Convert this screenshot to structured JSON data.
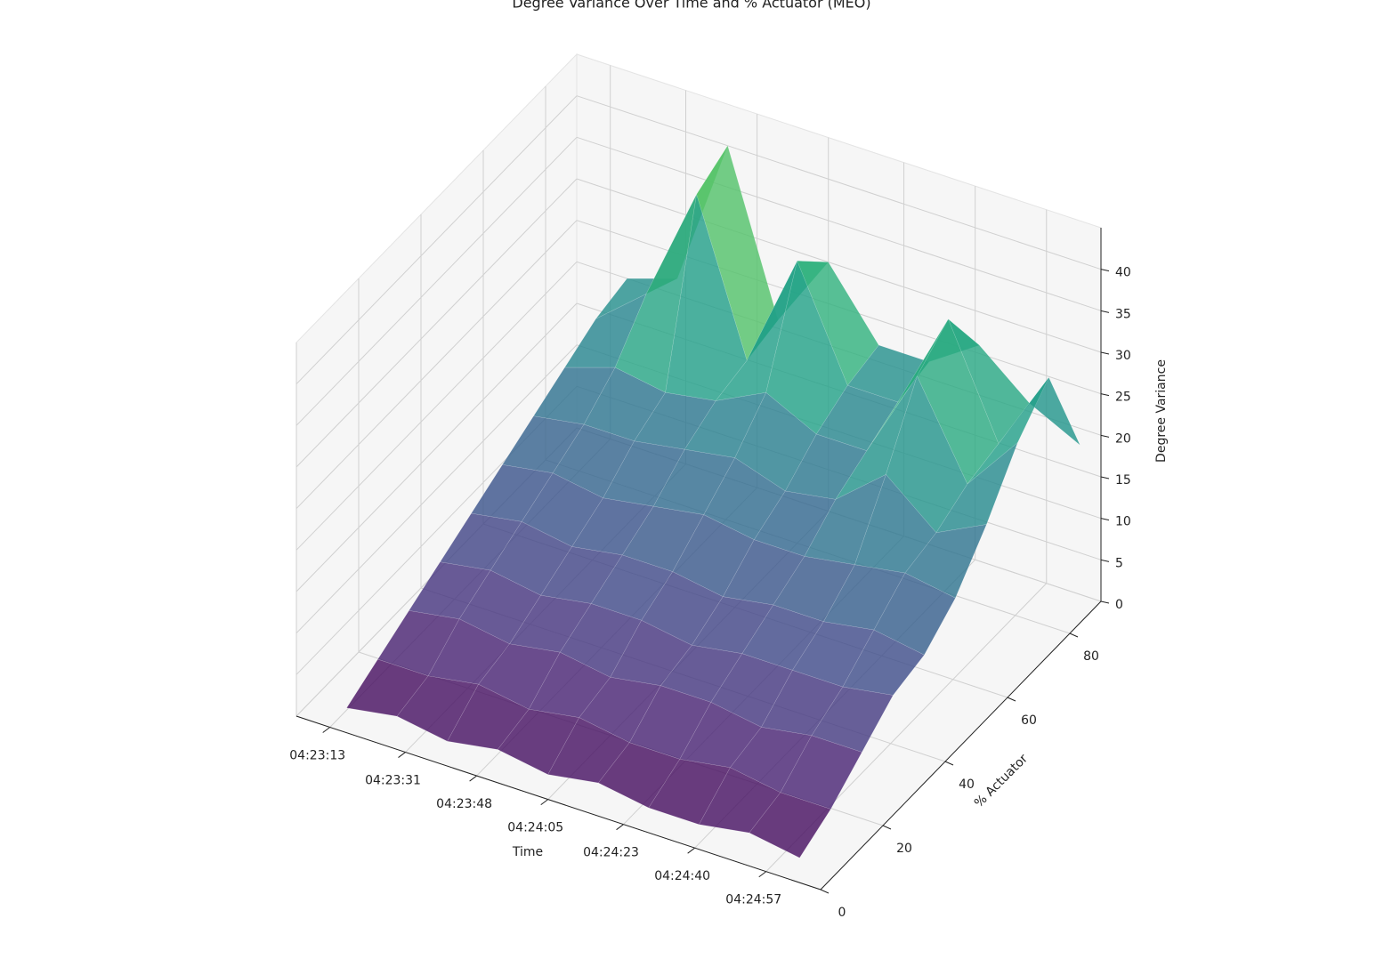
{
  "chart_data": {
    "type": "surface3d",
    "title": "Degree Variance Over Time and % Actuator (MEO)",
    "xlabel": "Time",
    "ylabel": "% Actuator",
    "zlabel": "Degree Variance",
    "x": [
      15797,
      15809,
      15821,
      15833,
      15845,
      15857,
      15869,
      15881,
      15893,
      15905
    ],
    "y": [
      0,
      10,
      20,
      30,
      40,
      50,
      60,
      70,
      80,
      90
    ],
    "z": [
      [
        3,
        4,
        3,
        4,
        3,
        4,
        3,
        3,
        4,
        3
      ],
      [
        5,
        5,
        6,
        5,
        6,
        5,
        5,
        6,
        5,
        5
      ],
      [
        7,
        8,
        7,
        8,
        7,
        8,
        8,
        7,
        8,
        8
      ],
      [
        9,
        10,
        9,
        10,
        10,
        9,
        10,
        10,
        10,
        11
      ],
      [
        11,
        12,
        11,
        12,
        12,
        11,
        12,
        12,
        13,
        12
      ],
      [
        13,
        14,
        13,
        14,
        15,
        14,
        14,
        15,
        16,
        15
      ],
      [
        15,
        16,
        16,
        17,
        18,
        16,
        17,
        22,
        17,
        20
      ],
      [
        17,
        19,
        18,
        19,
        22,
        19,
        19,
        30,
        19,
        26
      ],
      [
        19,
        24,
        38,
        20,
        34,
        21,
        21,
        33,
        20,
        30
      ],
      [
        20,
        22,
        40,
        21,
        30,
        22,
        22,
        26,
        21,
        18
      ]
    ],
    "colormap": "viridis",
    "alpha": 0.8,
    "xlim": [
      15785,
      15910
    ],
    "xticks": [
      {
        "value": 15793,
        "label": "04:23:13"
      },
      {
        "value": 15811,
        "label": "04:23:31"
      },
      {
        "value": 15828,
        "label": "04:23:48"
      },
      {
        "value": 15845,
        "label": "04:24:05"
      },
      {
        "value": 15863,
        "label": "04:24:23"
      },
      {
        "value": 15880,
        "label": "04:24:40"
      },
      {
        "value": 15897,
        "label": "04:24:57"
      }
    ],
    "ylim": [
      0,
      90
    ],
    "yticks": [
      0,
      20,
      40,
      60,
      80
    ],
    "zlim": [
      0,
      45
    ],
    "zticks": [
      0,
      5,
      10,
      15,
      20,
      25,
      30,
      35,
      40
    ],
    "grid": true
  }
}
